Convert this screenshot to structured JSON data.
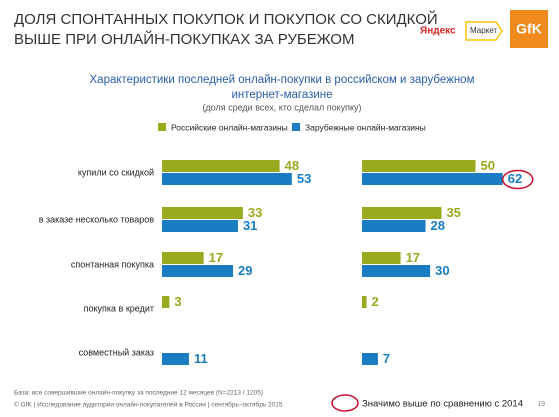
{
  "header": {
    "title_lines": [
      "ДОЛЯ СПОНТАННЫХ ПОКУПОК И ПОКУПОК СО СКИДКОЙ",
      "ВЫШЕ ПРИ ОНЛАЙН-ПОКУПКАХ ЗА РУБЕЖОМ"
    ]
  },
  "logos": {
    "yandex": "Яндекс",
    "market": "Маркет",
    "gfk": "GfK"
  },
  "chart_data": [
    {
      "type": "bar",
      "orientation": "horizontal",
      "title_lines": [
        "Характеристики последней онлайн-покупки в российском и зарубежном",
        "интернет-магазине"
      ],
      "subtitle": "(доля среди всех, кто сделал покупку)",
      "categories": [
        "купили со скидкой",
        "в заказе несколько товаров",
        "спонтанная покупка",
        "покупка в кредит",
        "совместный заказ"
      ],
      "xlim": [
        0,
        100
      ],
      "series": [
        {
          "name": "Российские онлайн-магазины",
          "color": "#9aaa1e",
          "values": [
            48,
            33,
            17,
            3,
            null
          ]
        },
        {
          "name": "Зарубежные онлайн-магазины",
          "color": "#1a7dc3",
          "values": [
            53,
            31,
            29,
            null,
            11
          ]
        }
      ]
    },
    {
      "type": "bar",
      "orientation": "horizontal",
      "categories": [
        null,
        null,
        null,
        null,
        null
      ],
      "xlim": [
        0,
        100
      ],
      "series": [
        {
          "color": "#9aaa1e",
          "values": [
            50,
            35,
            17,
            2,
            null
          ]
        },
        {
          "color": "#1a7dc3",
          "values": [
            62,
            28,
            30,
            null,
            7
          ],
          "highlighted": [
            true,
            false,
            false,
            false,
            false
          ]
        }
      ]
    }
  ],
  "note": "Значимо выше по сравнению с 2014",
  "footnotes": [
    "База: все совершившие онлайн-покупку за последние 12 месяцев (N=2213 / 1205)",
    "© GfK | Исследование аудитории онлайн-покупателей в России | сентябрь–октябрь 2015"
  ],
  "page_number": "19"
}
